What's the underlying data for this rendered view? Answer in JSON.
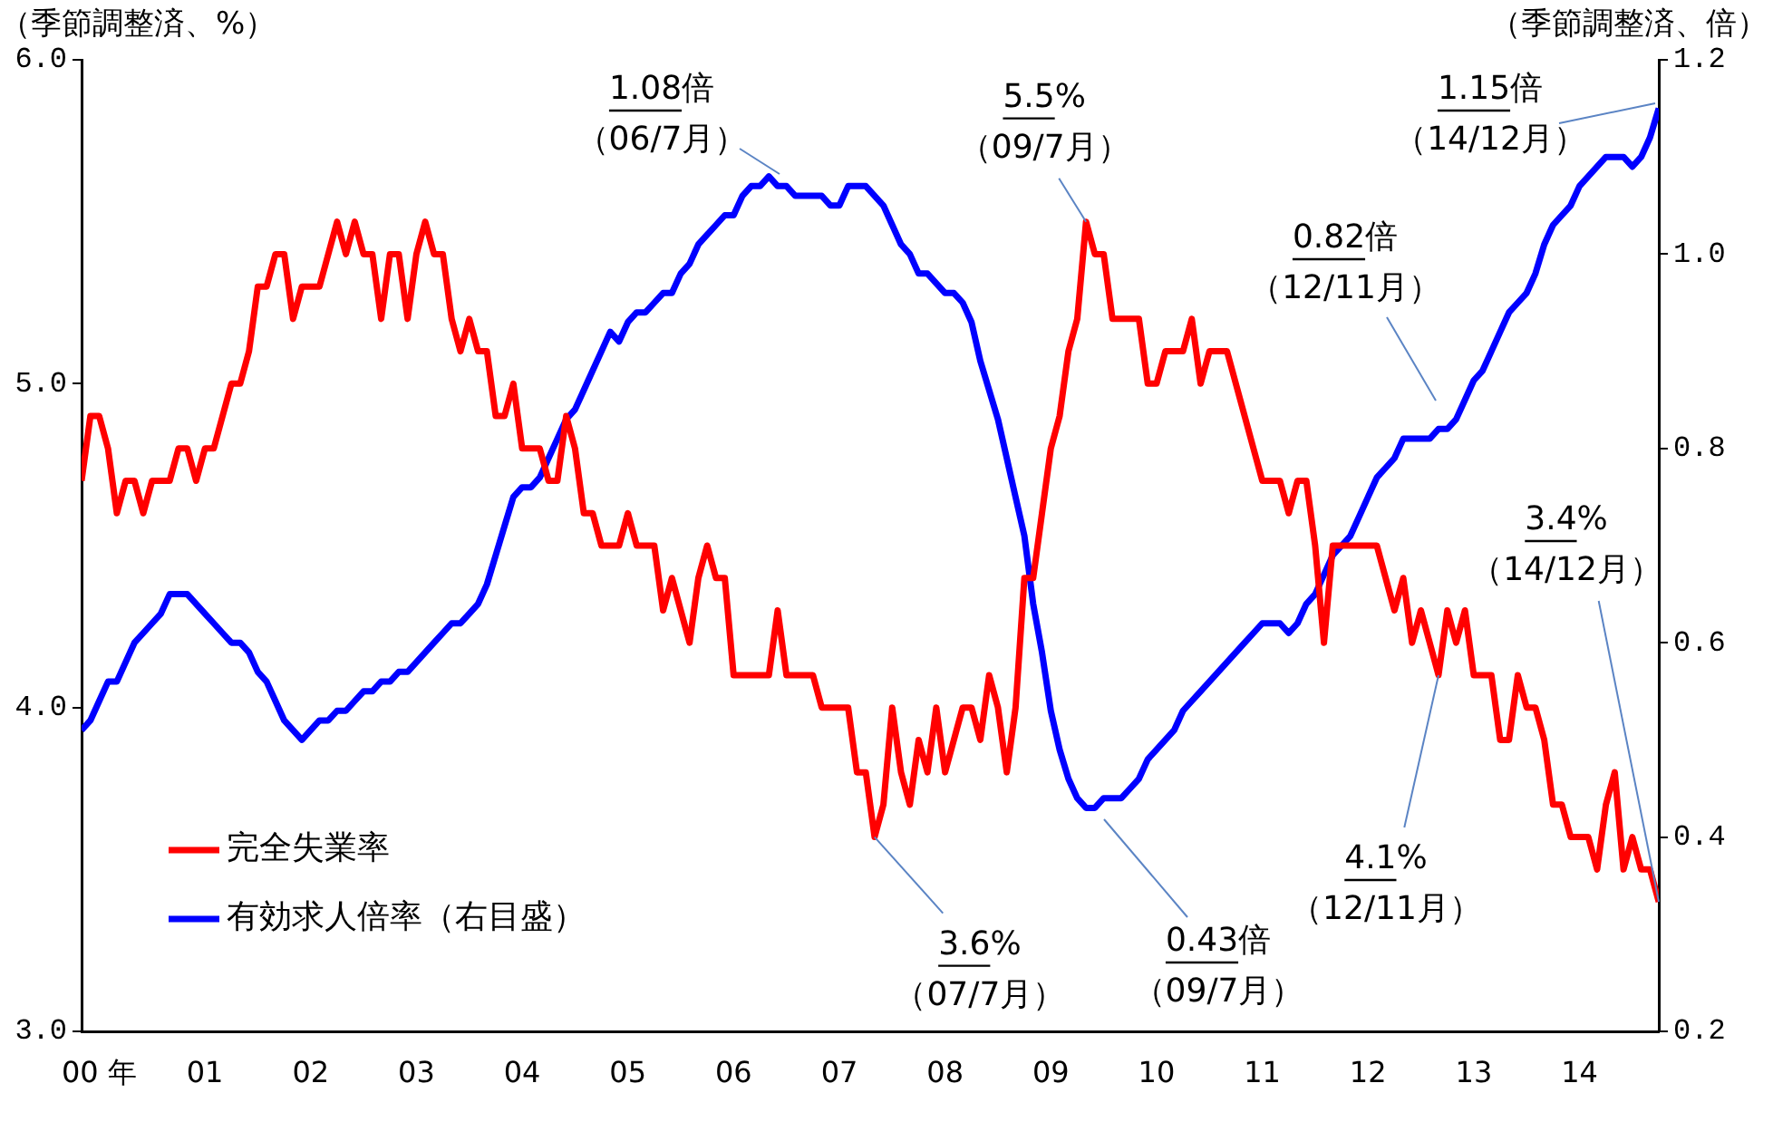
{
  "chart_data": {
    "type": "line",
    "ylabel": "（季節調整済、%）",
    "y2label": "（季節調整済、倍）",
    "x": [
      "2000-01",
      "2000-02",
      "2000-03",
      "2000-04",
      "2000-05",
      "2000-06",
      "2000-07",
      "2000-08",
      "2000-09",
      "2000-10",
      "2000-11",
      "2000-12",
      "2001-01",
      "2001-02",
      "2001-03",
      "2001-04",
      "2001-05",
      "2001-06",
      "2001-07",
      "2001-08",
      "2001-09",
      "2001-10",
      "2001-11",
      "2001-12",
      "2002-01",
      "2002-02",
      "2002-03",
      "2002-04",
      "2002-05",
      "2002-06",
      "2002-07",
      "2002-08",
      "2002-09",
      "2002-10",
      "2002-11",
      "2002-12",
      "2003-01",
      "2003-02",
      "2003-03",
      "2003-04",
      "2003-05",
      "2003-06",
      "2003-07",
      "2003-08",
      "2003-09",
      "2003-10",
      "2003-11",
      "2003-12",
      "2004-01",
      "2004-02",
      "2004-03",
      "2004-04",
      "2004-05",
      "2004-06",
      "2004-07",
      "2004-08",
      "2004-09",
      "2004-10",
      "2004-11",
      "2004-12",
      "2005-01",
      "2005-02",
      "2005-03",
      "2005-04",
      "2005-05",
      "2005-06",
      "2005-07",
      "2005-08",
      "2005-09",
      "2005-10",
      "2005-11",
      "2005-12",
      "2006-01",
      "2006-02",
      "2006-03",
      "2006-04",
      "2006-05",
      "2006-06",
      "2006-07",
      "2006-08",
      "2006-09",
      "2006-10",
      "2006-11",
      "2006-12",
      "2007-01",
      "2007-02",
      "2007-03",
      "2007-04",
      "2007-05",
      "2007-06",
      "2007-07",
      "2007-08",
      "2007-09",
      "2007-10",
      "2007-11",
      "2007-12",
      "2008-01",
      "2008-02",
      "2008-03",
      "2008-04",
      "2008-05",
      "2008-06",
      "2008-07",
      "2008-08",
      "2008-09",
      "2008-10",
      "2008-11",
      "2008-12",
      "2009-01",
      "2009-02",
      "2009-03",
      "2009-04",
      "2009-05",
      "2009-06",
      "2009-07",
      "2009-08",
      "2009-09",
      "2009-10",
      "2009-11",
      "2009-12",
      "2010-01",
      "2010-02",
      "2010-03",
      "2010-04",
      "2010-05",
      "2010-06",
      "2010-07",
      "2010-08",
      "2010-09",
      "2010-10",
      "2010-11",
      "2010-12",
      "2011-01",
      "2011-02",
      "2011-03",
      "2011-04",
      "2011-05",
      "2011-06",
      "2011-07",
      "2011-08",
      "2011-09",
      "2011-10",
      "2011-11",
      "2011-12",
      "2012-01",
      "2012-02",
      "2012-03",
      "2012-04",
      "2012-05",
      "2012-06",
      "2012-07",
      "2012-08",
      "2012-09",
      "2012-10",
      "2012-11",
      "2012-12",
      "2013-01",
      "2013-02",
      "2013-03",
      "2013-04",
      "2013-05",
      "2013-06",
      "2013-07",
      "2013-08",
      "2013-09",
      "2013-10",
      "2013-11",
      "2013-12",
      "2014-01",
      "2014-02",
      "2014-03",
      "2014-04",
      "2014-05",
      "2014-06",
      "2014-07",
      "2014-08",
      "2014-09",
      "2014-10",
      "2014-11",
      "2014-12"
    ],
    "xlim": [
      "2000-01",
      "2014-12"
    ],
    "xticks": [
      {
        "value": "2000-03",
        "label": "00 年"
      },
      {
        "value": "2001-03",
        "label": "01"
      },
      {
        "value": "2002-03",
        "label": "02"
      },
      {
        "value": "2003-03",
        "label": "03"
      },
      {
        "value": "2004-03",
        "label": "04"
      },
      {
        "value": "2005-03",
        "label": "05"
      },
      {
        "value": "2006-03",
        "label": "06"
      },
      {
        "value": "2007-03",
        "label": "07"
      },
      {
        "value": "2008-03",
        "label": "08"
      },
      {
        "value": "2009-03",
        "label": "09"
      },
      {
        "value": "2010-03",
        "label": "10"
      },
      {
        "value": "2011-03",
        "label": "11"
      },
      {
        "value": "2012-03",
        "label": "12"
      },
      {
        "value": "2013-03",
        "label": "13"
      },
      {
        "value": "2014-03",
        "label": "14"
      }
    ],
    "ylim": [
      3,
      6
    ],
    "yticks": [
      {
        "value": 3,
        "label": "3.0"
      },
      {
        "value": 4,
        "label": "4.0"
      },
      {
        "value": 5,
        "label": "5.0"
      },
      {
        "value": 6,
        "label": "6.0"
      }
    ],
    "y2lim": [
      0.2,
      1.2
    ],
    "y2ticks": [
      0.2,
      0.4,
      0.6,
      0.8,
      {
        "value": 1,
        "label": "1.0"
      },
      1.2
    ],
    "grid": false,
    "legend": "bottom left",
    "marker": "none",
    "line_style": "solid",
    "series": [
      {
        "name": "完全失業率",
        "color": "#ff0000",
        "values": [
          4.7,
          4.9,
          4.9,
          4.8,
          4.6,
          4.7,
          4.7,
          4.6,
          4.7,
          4.7,
          4.7,
          4.8,
          4.8,
          4.7,
          4.8,
          4.8,
          4.9,
          5.0,
          5.0,
          5.1,
          5.3,
          5.3,
          5.4,
          5.4,
          5.2,
          5.3,
          5.3,
          5.3,
          5.4,
          5.5,
          5.4,
          5.5,
          5.4,
          5.4,
          5.2,
          5.4,
          5.4,
          5.2,
          5.4,
          5.5,
          5.4,
          5.4,
          5.2,
          5.1,
          5.2,
          5.1,
          5.1,
          4.9,
          4.9,
          5.0,
          4.8,
          4.8,
          4.8,
          4.7,
          4.7,
          4.9,
          4.8,
          4.6,
          4.6,
          4.5,
          4.5,
          4.5,
          4.6,
          4.5,
          4.5,
          4.5,
          4.3,
          4.4,
          4.3,
          4.2,
          4.4,
          4.5,
          4.4,
          4.4,
          4.1,
          4.1,
          4.1,
          4.1,
          4.1,
          4.3,
          4.1,
          4.1,
          4.1,
          4.1,
          4.0,
          4.0,
          4.0,
          4.0,
          3.8,
          3.8,
          3.6,
          3.7,
          4.0,
          3.8,
          3.7,
          3.9,
          3.8,
          4.0,
          3.8,
          3.9,
          4.0,
          4.0,
          3.9,
          4.1,
          4.0,
          3.8,
          4.0,
          4.4,
          4.4,
          4.6,
          4.8,
          4.9,
          5.1,
          5.2,
          5.5,
          5.4,
          5.4,
          5.2,
          5.2,
          5.2,
          5.2,
          5.0,
          5.0,
          5.1,
          5.1,
          5.1,
          5.2,
          5.0,
          5.1,
          5.1,
          5.1,
          5.0,
          4.9,
          4.8,
          4.7,
          4.7,
          4.7,
          4.6,
          4.7,
          4.7,
          4.5,
          4.2,
          4.5,
          4.5,
          4.5,
          4.5,
          4.5,
          4.5,
          4.4,
          4.3,
          4.4,
          4.2,
          4.3,
          4.2,
          4.1,
          4.3,
          4.2,
          4.3,
          4.1,
          4.1,
          4.1,
          3.9,
          3.9,
          4.1,
          4.0,
          4.0,
          3.9,
          3.7,
          3.7,
          3.6,
          3.6,
          3.6,
          3.5,
          3.7,
          3.8,
          3.5,
          3.6,
          3.5,
          3.5,
          3.4
        ]
      },
      {
        "name": "有効求人倍率（右目盛）",
        "color": "#0000ff",
        "axis": "y2",
        "values": [
          0.51,
          0.52,
          0.54,
          0.56,
          0.56,
          0.58,
          0.6,
          0.61,
          0.62,
          0.63,
          0.65,
          0.65,
          0.65,
          0.64,
          0.63,
          0.62,
          0.61,
          0.6,
          0.6,
          0.59,
          0.57,
          0.56,
          0.54,
          0.52,
          0.51,
          0.5,
          0.51,
          0.52,
          0.52,
          0.53,
          0.53,
          0.54,
          0.55,
          0.55,
          0.56,
          0.56,
          0.57,
          0.57,
          0.58,
          0.59,
          0.6,
          0.61,
          0.62,
          0.62,
          0.63,
          0.64,
          0.66,
          0.69,
          0.72,
          0.75,
          0.76,
          0.76,
          0.77,
          0.79,
          0.81,
          0.83,
          0.84,
          0.86,
          0.88,
          0.9,
          0.92,
          0.91,
          0.93,
          0.94,
          0.94,
          0.95,
          0.96,
          0.96,
          0.98,
          0.99,
          1.01,
          1.02,
          1.03,
          1.04,
          1.04,
          1.06,
          1.07,
          1.07,
          1.08,
          1.07,
          1.07,
          1.06,
          1.06,
          1.06,
          1.06,
          1.05,
          1.05,
          1.07,
          1.07,
          1.07,
          1.06,
          1.05,
          1.03,
          1.01,
          1.0,
          0.98,
          0.98,
          0.97,
          0.96,
          0.96,
          0.95,
          0.93,
          0.89,
          0.86,
          0.83,
          0.79,
          0.75,
          0.71,
          0.64,
          0.59,
          0.53,
          0.49,
          0.46,
          0.44,
          0.43,
          0.43,
          0.44,
          0.44,
          0.44,
          0.45,
          0.46,
          0.48,
          0.49,
          0.5,
          0.51,
          0.53,
          0.54,
          0.55,
          0.56,
          0.57,
          0.58,
          0.59,
          0.6,
          0.61,
          0.62,
          0.62,
          0.62,
          0.61,
          0.62,
          0.64,
          0.65,
          0.67,
          0.69,
          0.7,
          0.71,
          0.73,
          0.75,
          0.77,
          0.78,
          0.79,
          0.81,
          0.81,
          0.81,
          0.81,
          0.82,
          0.82,
          0.83,
          0.85,
          0.87,
          0.88,
          0.9,
          0.92,
          0.94,
          0.95,
          0.96,
          0.98,
          1.01,
          1.03,
          1.04,
          1.05,
          1.07,
          1.08,
          1.09,
          1.1,
          1.1,
          1.1,
          1.09,
          1.1,
          1.12,
          1.15
        ]
      }
    ],
    "annotations": [
      "1.08倍（06/7月）",
      {
        "text": "5.5%（09/7月）",
        "x": "2009-07",
        "y": 5.5
      },
      {
        "text": "1.15倍（14/12月）",
        "x": "2014-12"
      },
      "0.82倍（12/11月）",
      {
        "text": "3.4%（14/12月）",
        "x": "2014-12",
        "y": 3.4
      },
      {
        "text": "4.1%（12/11月）",
        "x": "2012-11",
        "y": 4.1
      },
      {
        "text": "3.6%（07/7月）",
        "x": "2007-07",
        "y": 3.6
      },
      "0.43倍（09/7月）"
    ]
  }
}
